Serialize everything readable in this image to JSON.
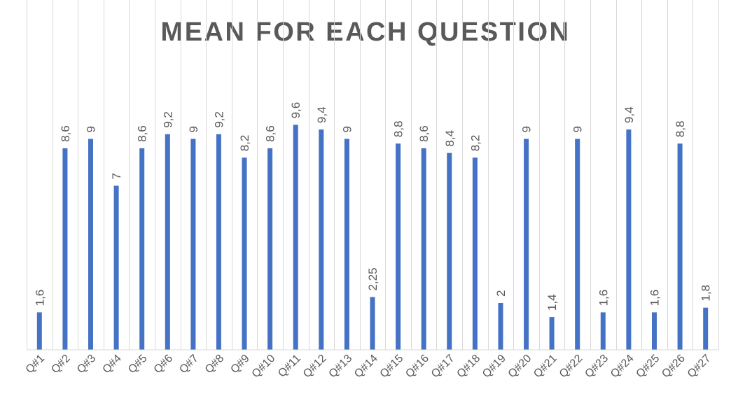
{
  "chart_data": {
    "type": "bar",
    "title": "MEAN FOR EACH QUESTION",
    "xlabel": "",
    "ylabel": "",
    "categories": [
      "Q#1",
      "Q#2",
      "Q#3",
      "Q#4",
      "Q#5",
      "Q#6",
      "Q#7",
      "Q#8",
      "Q#9",
      "Q#10",
      "Q#11",
      "Q#12",
      "Q#13",
      "Q#14",
      "Q#15",
      "Q#16",
      "Q#17",
      "Q#18",
      "Q#19",
      "Q#20",
      "Q#21",
      "Q#22",
      "Q#23",
      "Q#24",
      "Q#25",
      "Q#26",
      "Q#27"
    ],
    "values": [
      1.6,
      8.6,
      9,
      7,
      8.6,
      9.2,
      9,
      9.2,
      8.2,
      8.6,
      9.6,
      9.4,
      9,
      2.25,
      8.8,
      8.6,
      8.4,
      8.2,
      2,
      9,
      1.4,
      9,
      1.6,
      9.4,
      1.6,
      8.8,
      1.8
    ],
    "data_labels": [
      "1,6",
      "8,6",
      "9",
      "7",
      "8,6",
      "9,2",
      "9",
      "9,2",
      "8,2",
      "8,6",
      "9,6",
      "9,4",
      "9",
      "2,25",
      "8,8",
      "8,6",
      "8,4",
      "8,2",
      "2",
      "9",
      "1,4",
      "9",
      "1,6",
      "9,4",
      "1,6",
      "8,8",
      "1,8"
    ],
    "ylim": [
      0,
      10
    ],
    "grid": "vertical",
    "legend": "none",
    "colors": {
      "bar": "#4472C4",
      "grid": "#D9D9D9",
      "text": "#595959"
    }
  }
}
